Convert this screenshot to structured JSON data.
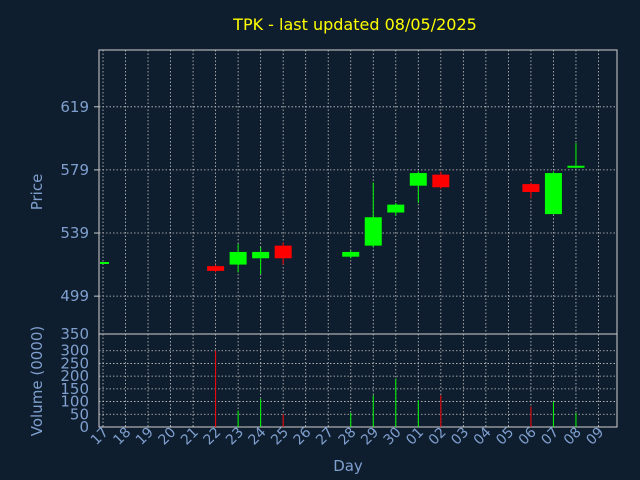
{
  "chart_data": {
    "type": "candlestick",
    "title": "TPK - last updated 08/05/2025",
    "xlabel": "Day",
    "price_panel": {
      "ylabel": "Price",
      "yticks": [
        499,
        539,
        579,
        619
      ],
      "ylim": [
        475,
        655
      ]
    },
    "volume_panel": {
      "ylabel": "Volume (0000)",
      "yticks": [
        0,
        50,
        100,
        150,
        200,
        250,
        300,
        350
      ],
      "ylim": [
        0,
        350
      ]
    },
    "x_ticks": [
      "17",
      "18",
      "19",
      "20",
      "21",
      "22",
      "23",
      "24",
      "25",
      "26",
      "27",
      "28",
      "29",
      "30",
      "01",
      "02",
      "03",
      "04",
      "05",
      "06",
      "07",
      "08",
      "09"
    ],
    "candles": [
      {
        "day": "17",
        "open": 520,
        "high": 520,
        "low": 520,
        "close": 520,
        "volume": 0
      },
      {
        "day": "22",
        "open": 518,
        "high": 519,
        "low": 514,
        "close": 515,
        "volume": 300
      },
      {
        "day": "23",
        "open": 519,
        "high": 532,
        "low": 514,
        "close": 527,
        "volume": 65
      },
      {
        "day": "24",
        "open": 523,
        "high": 530,
        "low": 513,
        "close": 527,
        "volume": 110
      },
      {
        "day": "25",
        "open": 531,
        "high": 533,
        "low": 519,
        "close": 523,
        "volume": 50
      },
      {
        "day": "28",
        "open": 524,
        "high": 528,
        "low": 523,
        "close": 527,
        "volume": 55
      },
      {
        "day": "29",
        "open": 531,
        "high": 571,
        "low": 530,
        "close": 549,
        "volume": 125
      },
      {
        "day": "30",
        "open": 552,
        "high": 558,
        "low": 550,
        "close": 557,
        "volume": 190
      },
      {
        "day": "01",
        "open": 569,
        "high": 578,
        "low": 558,
        "close": 577,
        "volume": 105
      },
      {
        "day": "02",
        "open": 576,
        "high": 578,
        "low": 567,
        "close": 568,
        "volume": 125
      },
      {
        "day": "06",
        "open": 570,
        "high": 571,
        "low": 561,
        "close": 565,
        "volume": 80
      },
      {
        "day": "07",
        "open": 551,
        "high": 578,
        "low": 551,
        "close": 577,
        "volume": 100
      },
      {
        "day": "08",
        "open": 581,
        "high": 596,
        "low": 580,
        "close": 581,
        "volume": 55
      }
    ],
    "colors": {
      "up": "#00ff00",
      "down": "#ff0000",
      "title": "#ffff00",
      "axis_text": "#7f9fcf",
      "background": "#0f1e2e",
      "grid": "#c8c8c8"
    }
  }
}
